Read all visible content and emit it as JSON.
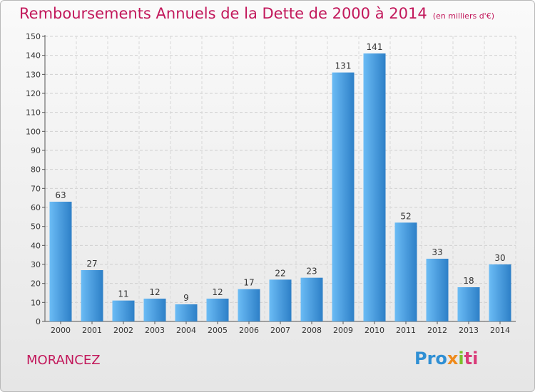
{
  "header": {
    "title": "Remboursements Annuels de la Dette de 2000 à 2014",
    "unit": "(en milliers d'€)"
  },
  "footer": {
    "place": "MORANCEZ",
    "logo_parts": [
      "Pro",
      "x",
      "i",
      "ti"
    ]
  },
  "colors": {
    "title": "#c2185b",
    "bar_light": "#5fb2f0",
    "bar_dark": "#2a77bd",
    "grid": "#cfcfcf"
  },
  "chart_data": {
    "type": "bar",
    "title": "Remboursements Annuels de la Dette de 2000 à 2014",
    "xlabel": "",
    "ylabel": "",
    "categories": [
      "2000",
      "2001",
      "2002",
      "2003",
      "2004",
      "2005",
      "2006",
      "2007",
      "2008",
      "2009",
      "2010",
      "2011",
      "2012",
      "2013",
      "2014"
    ],
    "values": [
      63,
      27,
      11,
      12,
      9,
      12,
      17,
      22,
      23,
      131,
      141,
      52,
      33,
      18,
      30
    ],
    "ylim": [
      0,
      150
    ],
    "yticks": [
      0,
      10,
      20,
      30,
      40,
      50,
      60,
      70,
      80,
      90,
      100,
      110,
      120,
      130,
      140,
      150
    ],
    "grid": true,
    "legend": "none"
  }
}
